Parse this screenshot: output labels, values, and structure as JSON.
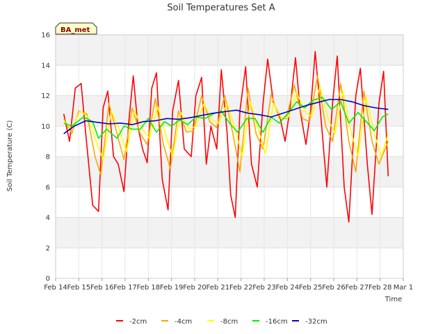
{
  "chart_data": {
    "type": "line",
    "title": "Soil Temperatures Set A",
    "xlabel": "Time",
    "ylabel": "Soil Temperature (C)",
    "station_badge": "BA_met",
    "ylim": [
      0,
      16
    ],
    "yticks": [
      0,
      2,
      4,
      6,
      8,
      10,
      12,
      14,
      16
    ],
    "xlim": [
      0,
      15
    ],
    "xtick_labels": [
      "Feb 14",
      "Feb 15",
      "Feb 16",
      "Feb 17",
      "Feb 18",
      "Feb 19",
      "Feb 20",
      "Feb 21",
      "Feb 22",
      "Feb 23",
      "Feb 24",
      "Feb 25",
      "Feb 26",
      "Feb 27",
      "Feb 28",
      "Mar 1"
    ],
    "grid": true,
    "legend_placement": "bottom",
    "series": [
      {
        "name": "-2cm",
        "color": "#ff0000",
        "x": [
          0.35,
          0.6,
          0.85,
          1.1,
          1.3,
          1.6,
          1.85,
          2.05,
          2.25,
          2.5,
          2.7,
          2.95,
          3.15,
          3.35,
          3.55,
          3.75,
          3.95,
          4.15,
          4.35,
          4.6,
          4.85,
          5.05,
          5.3,
          5.55,
          5.85,
          6.05,
          6.3,
          6.5,
          6.7,
          6.95,
          7.15,
          7.4,
          7.55,
          7.75,
          7.95,
          8.2,
          8.45,
          8.7,
          8.95,
          9.15,
          9.4,
          9.65,
          9.9,
          10.1,
          10.35,
          10.55,
          10.8,
          11.0,
          11.2,
          11.45,
          11.7,
          11.95,
          12.15,
          12.45,
          12.65,
          12.95,
          13.15,
          13.45,
          13.65,
          13.95,
          14.15,
          14.35
        ],
        "y": [
          10.8,
          9.0,
          12.5,
          12.8,
          9.5,
          4.8,
          4.4,
          11.2,
          12.3,
          8.0,
          7.5,
          5.7,
          10.2,
          13.3,
          10.0,
          8.5,
          7.6,
          12.5,
          13.5,
          6.5,
          4.5,
          11.0,
          13.0,
          8.5,
          8.0,
          12.0,
          13.2,
          7.5,
          10.0,
          8.5,
          13.7,
          9.5,
          5.5,
          4.0,
          11.0,
          13.9,
          7.5,
          6.0,
          11.5,
          14.4,
          11.5,
          10.8,
          9.0,
          11.0,
          14.5,
          11.0,
          8.8,
          11.0,
          14.9,
          10.5,
          6.0,
          11.5,
          14.6,
          6.0,
          3.7,
          12.0,
          13.8,
          7.5,
          4.2,
          11.5,
          13.6,
          6.7
        ]
      },
      {
        "name": "-4cm",
        "color": "#ffa500",
        "x": [
          0.35,
          0.7,
          1.0,
          1.35,
          1.7,
          1.95,
          2.3,
          2.65,
          2.95,
          3.3,
          3.65,
          3.95,
          4.3,
          4.65,
          4.95,
          5.3,
          5.65,
          5.95,
          6.3,
          6.65,
          6.95,
          7.3,
          7.65,
          7.95,
          8.3,
          8.65,
          8.95,
          9.3,
          9.65,
          9.95,
          10.3,
          10.65,
          10.95,
          11.3,
          11.65,
          11.95,
          12.3,
          12.65,
          12.95,
          13.3,
          13.65,
          13.95,
          14.35
        ],
        "y": [
          10.5,
          9.5,
          11.0,
          10.8,
          8.0,
          6.8,
          11.5,
          9.5,
          7.8,
          11.2,
          9.5,
          8.8,
          11.8,
          8.8,
          7.2,
          11.0,
          9.6,
          9.7,
          12.0,
          10.3,
          9.9,
          12.0,
          9.5,
          7.0,
          12.5,
          9.5,
          8.5,
          12.1,
          10.5,
          10.5,
          12.7,
          10.5,
          10.3,
          13.3,
          10.0,
          9.0,
          12.8,
          9.0,
          7.0,
          12.3,
          9.0,
          7.5,
          9.0
        ]
      },
      {
        "name": "-8cm",
        "color": "#ffff00",
        "x": [
          0.35,
          0.7,
          1.05,
          1.4,
          1.75,
          2.05,
          2.4,
          2.75,
          3.05,
          3.4,
          3.75,
          4.05,
          4.4,
          4.75,
          5.05,
          5.4,
          5.75,
          6.05,
          6.4,
          6.75,
          7.05,
          7.4,
          7.75,
          8.05,
          8.4,
          8.75,
          9.05,
          9.4,
          9.75,
          10.05,
          10.4,
          10.75,
          11.05,
          11.4,
          11.75,
          12.05,
          12.4,
          12.75,
          13.05,
          13.4,
          13.75,
          14.05,
          14.35
        ],
        "y": [
          10.3,
          9.8,
          11.0,
          10.6,
          9.0,
          7.8,
          11.0,
          9.8,
          8.3,
          11.0,
          9.8,
          9.2,
          11.3,
          9.4,
          8.0,
          10.9,
          9.8,
          10.0,
          11.5,
          10.4,
          10.2,
          11.5,
          9.8,
          8.0,
          11.6,
          9.8,
          8.2,
          11.5,
          10.5,
          10.6,
          12.2,
          11.0,
          10.6,
          12.6,
          10.5,
          9.5,
          12.3,
          9.6,
          8.0,
          11.9,
          9.5,
          8.0,
          9.5
        ]
      },
      {
        "name": "-16cm",
        "color": "#00ee00",
        "x": [
          0.35,
          0.7,
          1.2,
          1.6,
          1.85,
          2.2,
          2.65,
          2.95,
          3.3,
          3.65,
          4.0,
          4.35,
          4.7,
          5.0,
          5.35,
          5.7,
          6.05,
          6.45,
          6.8,
          7.15,
          7.5,
          7.85,
          8.25,
          8.6,
          8.95,
          9.3,
          9.65,
          10.05,
          10.4,
          10.75,
          11.1,
          11.5,
          11.9,
          12.3,
          12.65,
          13.05,
          13.4,
          13.75,
          14.1,
          14.35
        ],
        "y": [
          10.2,
          10.0,
          10.6,
          10.3,
          9.2,
          9.8,
          9.2,
          10.0,
          9.8,
          9.8,
          10.5,
          9.6,
          10.3,
          10.0,
          10.4,
          10.1,
          10.6,
          10.5,
          10.8,
          11.0,
          10.2,
          9.6,
          10.5,
          10.5,
          9.6,
          10.6,
          10.2,
          10.9,
          11.6,
          11.2,
          11.7,
          11.9,
          11.1,
          11.6,
          10.2,
          10.9,
          10.3,
          9.7,
          10.6,
          10.8
        ]
      },
      {
        "name": "-32cm",
        "color": "#0000cc",
        "x": [
          0.35,
          0.8,
          1.3,
          1.8,
          2.3,
          2.8,
          3.3,
          3.8,
          4.3,
          4.8,
          5.3,
          5.8,
          6.3,
          6.8,
          7.3,
          7.8,
          8.3,
          8.8,
          9.3,
          9.8,
          10.3,
          10.8,
          11.3,
          11.8,
          12.3,
          12.8,
          13.3,
          13.8,
          14.35
        ],
        "y": [
          9.5,
          10.0,
          10.35,
          10.25,
          10.15,
          10.2,
          10.1,
          10.3,
          10.35,
          10.5,
          10.45,
          10.55,
          10.7,
          10.85,
          10.95,
          11.05,
          10.85,
          10.75,
          10.6,
          10.85,
          11.1,
          11.35,
          11.55,
          11.75,
          11.75,
          11.6,
          11.35,
          11.2,
          11.1
        ]
      }
    ]
  }
}
